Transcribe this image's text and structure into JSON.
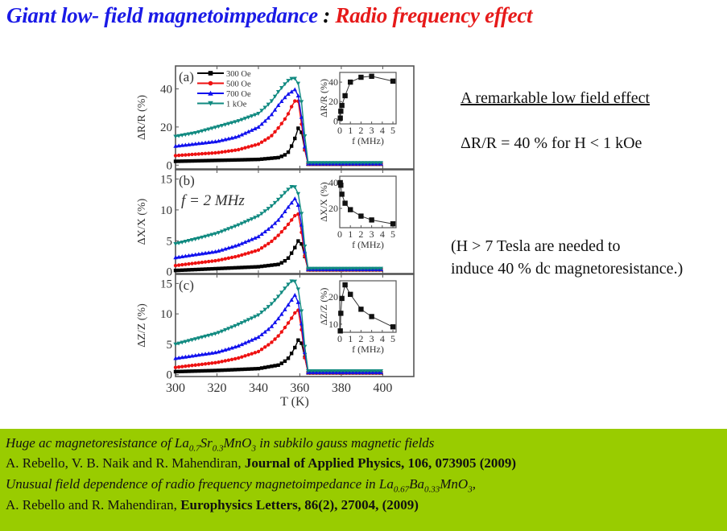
{
  "slide": {
    "title_part1": "Giant  low- field  magnetoimpedance",
    "title_sep": " : ",
    "title_part2": "Radio frequency effect",
    "colors": {
      "title_blue": "#1a1ae6",
      "title_red": "#e61a1a",
      "refs_bg": "#99cc00"
    }
  },
  "notes": {
    "heading": "A remarkable low field effect",
    "statement": "ΔR/R = 40 %  for H < 1 kOe",
    "comparison_line1": "(H >  7 Tesla are needed to",
    "comparison_line2": "induce 40 % dc magnetoresistance.)"
  },
  "references": [
    {
      "title_prefix": "Huge ac magnetoresistance of La",
      "s1": "0.7",
      "mid1": "Sr",
      "s2": "0.3",
      "mid2": "MnO",
      "s3": "3",
      "title_suffix": " in subkilo gauss magnetic fields"
    },
    {
      "authors": "A. Rebello, V. B. Naik and R. Mahendiran, ",
      "journal": "Journal of Applied Physics, 106, 073905 (2009)"
    },
    {
      "title_prefix": "Unusual field dependence of radio frequency magnetoimpedance in La",
      "s1": "0.67",
      "mid1": "Ba",
      "s2": "0.33",
      "mid2": "MnO",
      "s3": "3",
      "title_suffix": ","
    },
    {
      "authors": "A. Rebello and R. Mahendiran, ",
      "journal": "Europhysics Letters, 86(2), 27004, (2009)"
    }
  ],
  "chart_data": [
    {
      "type": "line",
      "panel_label": "(a)",
      "ylabel": "ΔR/R (%)",
      "xlabel": "T (K)",
      "xlim": [
        300,
        415
      ],
      "ylim": [
        -2,
        52
      ],
      "yticks": [
        0,
        20,
        40
      ],
      "xticks": [
        300,
        320,
        340,
        360,
        380,
        400
      ],
      "legend": "top-left",
      "series": [
        {
          "name": "300 Oe",
          "color": "#000000",
          "marker": "square",
          "points": [
            [
              300,
              2
            ],
            [
              320,
              2.5
            ],
            [
              340,
              3
            ],
            [
              350,
              4
            ],
            [
              354,
              6
            ],
            [
              357,
              12
            ],
            [
              360,
              22
            ],
            [
              362,
              10
            ],
            [
              364,
              0.5
            ],
            [
              400,
              0.5
            ]
          ]
        },
        {
          "name": "500 Oe",
          "color": "#ee1111",
          "marker": "circle",
          "points": [
            [
              300,
              5
            ],
            [
              320,
              6.5
            ],
            [
              330,
              8
            ],
            [
              340,
              11
            ],
            [
              346,
              15
            ],
            [
              350,
              20
            ],
            [
              354,
              26
            ],
            [
              357,
              33
            ],
            [
              359,
              35
            ],
            [
              361,
              20
            ],
            [
              363,
              3
            ],
            [
              364,
              0.5
            ],
            [
              400,
              0.5
            ]
          ]
        },
        {
          "name": "700 Oe",
          "color": "#1111ee",
          "marker": "triangle-up",
          "points": [
            [
              300,
              10
            ],
            [
              320,
              12.5
            ],
            [
              330,
              15
            ],
            [
              340,
              20
            ],
            [
              346,
              26
            ],
            [
              350,
              32
            ],
            [
              354,
              37
            ],
            [
              358,
              40
            ],
            [
              360,
              34
            ],
            [
              362,
              12
            ],
            [
              364,
              0.8
            ],
            [
              400,
              0.8
            ]
          ]
        },
        {
          "name": "1 kOe",
          "color": "#108a80",
          "marker": "triangle-down",
          "points": [
            [
              300,
              15
            ],
            [
              310,
              17
            ],
            [
              320,
              20
            ],
            [
              330,
              23
            ],
            [
              340,
              27
            ],
            [
              346,
              33
            ],
            [
              350,
              39
            ],
            [
              354,
              44
            ],
            [
              357,
              46
            ],
            [
              359,
              44
            ],
            [
              361,
              32
            ],
            [
              363,
              8
            ],
            [
              364,
              1.2
            ],
            [
              400,
              1.2
            ]
          ]
        }
      ],
      "inset": {
        "xlabel": "f (MHz)",
        "ylabel": "ΔR/R (%)",
        "xlim": [
          0,
          5.3
        ],
        "ylim": [
          -3,
          50
        ],
        "xticks": [
          0,
          1,
          2,
          3,
          4,
          5
        ],
        "yticks": [
          0,
          20,
          40
        ],
        "x": [
          0.05,
          0.1,
          0.2,
          0.5,
          1,
          2,
          3,
          5
        ],
        "y": [
          3,
          10,
          16,
          26,
          40,
          45,
          46,
          41
        ]
      }
    },
    {
      "type": "line",
      "panel_label": "(b)",
      "annotation": "f = 2 MHz",
      "ylabel": "ΔX/X (%)",
      "xlabel": "T (K)",
      "xlim": [
        300,
        415
      ],
      "ylim": [
        -0.3,
        16.5
      ],
      "yticks": [
        0,
        5,
        10,
        15
      ],
      "xticks": [
        300,
        320,
        340,
        360,
        380,
        400
      ],
      "series": [
        {
          "name": "300 Oe",
          "color": "#000000",
          "marker": "square",
          "points": [
            [
              300,
              0.2
            ],
            [
              320,
              0.5
            ],
            [
              340,
              0.8
            ],
            [
              350,
              1.2
            ],
            [
              354,
              2
            ],
            [
              357,
              3.5
            ],
            [
              360,
              5.5
            ],
            [
              362,
              3
            ],
            [
              364,
              0.3
            ],
            [
              400,
              0.3
            ]
          ]
        },
        {
          "name": "500 Oe",
          "color": "#ee1111",
          "marker": "circle",
          "points": [
            [
              300,
              1
            ],
            [
              320,
              1.8
            ],
            [
              330,
              2.5
            ],
            [
              340,
              3.5
            ],
            [
              346,
              4.8
            ],
            [
              350,
              6
            ],
            [
              354,
              7.5
            ],
            [
              357,
              8.8
            ],
            [
              359,
              9.7
            ],
            [
              361,
              6
            ],
            [
              363,
              1
            ],
            [
              364,
              0.3
            ],
            [
              400,
              0.3
            ]
          ]
        },
        {
          "name": "700 Oe",
          "color": "#1111ee",
          "marker": "triangle-up",
          "points": [
            [
              300,
              2.3
            ],
            [
              320,
              3.3
            ],
            [
              330,
              4.3
            ],
            [
              340,
              5.7
            ],
            [
              346,
              7.2
            ],
            [
              350,
              8.5
            ],
            [
              354,
              10.3
            ],
            [
              358,
              12
            ],
            [
              360,
              10
            ],
            [
              362,
              4
            ],
            [
              364,
              0.4
            ],
            [
              400,
              0.4
            ]
          ]
        },
        {
          "name": "1 kOe",
          "color": "#108a80",
          "marker": "triangle-down",
          "points": [
            [
              300,
              4.5
            ],
            [
              310,
              5.3
            ],
            [
              320,
              6.2
            ],
            [
              330,
              7.5
            ],
            [
              340,
              9
            ],
            [
              346,
              10.5
            ],
            [
              350,
              11.8
            ],
            [
              354,
              13.2
            ],
            [
              357,
              14
            ],
            [
              359,
              13
            ],
            [
              361,
              9
            ],
            [
              363,
              2
            ],
            [
              364,
              0.5
            ],
            [
              400,
              0.5
            ]
          ]
        }
      ],
      "inset": {
        "xlabel": "f (MHz)",
        "ylabel": "ΔX/X (%)",
        "xlim": [
          0,
          5.3
        ],
        "ylim": [
          5,
          45
        ],
        "xticks": [
          0,
          1,
          2,
          3,
          4,
          5
        ],
        "yticks": [
          20,
          40
        ],
        "x": [
          0.05,
          0.1,
          0.2,
          0.5,
          1,
          2,
          3,
          5
        ],
        "y": [
          40,
          38,
          31,
          24,
          19,
          14,
          11,
          8
        ]
      }
    },
    {
      "type": "line",
      "panel_label": "(c)",
      "ylabel": "ΔZ/Z (%)",
      "xlabel": "T (K)",
      "xlim": [
        300,
        415
      ],
      "ylim": [
        -0.3,
        16.5
      ],
      "yticks": [
        0,
        5,
        10,
        15
      ],
      "xticks": [
        300,
        320,
        340,
        360,
        380,
        400
      ],
      "series": [
        {
          "name": "300 Oe",
          "color": "#000000",
          "marker": "square",
          "points": [
            [
              300,
              0.5
            ],
            [
              320,
              0.7
            ],
            [
              340,
              1
            ],
            [
              350,
              1.6
            ],
            [
              354,
              2.5
            ],
            [
              357,
              4
            ],
            [
              360,
              6.3
            ],
            [
              362,
              3.5
            ],
            [
              364,
              0.3
            ],
            [
              400,
              0.3
            ]
          ]
        },
        {
          "name": "500 Oe",
          "color": "#ee1111",
          "marker": "circle",
          "points": [
            [
              300,
              1.2
            ],
            [
              320,
              2
            ],
            [
              330,
              2.7
            ],
            [
              340,
              3.8
            ],
            [
              346,
              5.2
            ],
            [
              350,
              6.5
            ],
            [
              354,
              8.3
            ],
            [
              357,
              9.8
            ],
            [
              359,
              11
            ],
            [
              361,
              7
            ],
            [
              363,
              1
            ],
            [
              364,
              0.3
            ],
            [
              400,
              0.3
            ]
          ]
        },
        {
          "name": "700 Oe",
          "color": "#1111ee",
          "marker": "triangle-up",
          "points": [
            [
              300,
              2.7
            ],
            [
              320,
              3.7
            ],
            [
              330,
              4.7
            ],
            [
              340,
              6.2
            ],
            [
              346,
              7.8
            ],
            [
              350,
              9.4
            ],
            [
              354,
              11.3
            ],
            [
              358,
              13.3
            ],
            [
              360,
              11
            ],
            [
              362,
              4.5
            ],
            [
              364,
              0.4
            ],
            [
              400,
              0.4
            ]
          ]
        },
        {
          "name": "1 kOe",
          "color": "#108a80",
          "marker": "triangle-down",
          "points": [
            [
              300,
              5
            ],
            [
              310,
              5.9
            ],
            [
              320,
              6.8
            ],
            [
              330,
              8.2
            ],
            [
              340,
              9.8
            ],
            [
              346,
              11.5
            ],
            [
              350,
              13
            ],
            [
              354,
              14.7
            ],
            [
              357,
              15.7
            ],
            [
              359,
              14.5
            ],
            [
              361,
              10
            ],
            [
              363,
              2.3
            ],
            [
              364,
              0.6
            ],
            [
              400,
              0.6
            ]
          ]
        }
      ],
      "inset": {
        "xlabel": "f (MHz)",
        "ylabel": "ΔZ/Z (%)",
        "xlim": [
          0,
          5.3
        ],
        "ylim": [
          7,
          26
        ],
        "xticks": [
          0,
          1,
          2,
          3,
          4,
          5
        ],
        "yticks": [
          10,
          20
        ],
        "x": [
          0.05,
          0.1,
          0.2,
          0.5,
          1,
          2,
          3,
          5
        ],
        "y": [
          7.5,
          14,
          19.5,
          24.5,
          21,
          15.5,
          12.8,
          9
        ]
      }
    }
  ]
}
